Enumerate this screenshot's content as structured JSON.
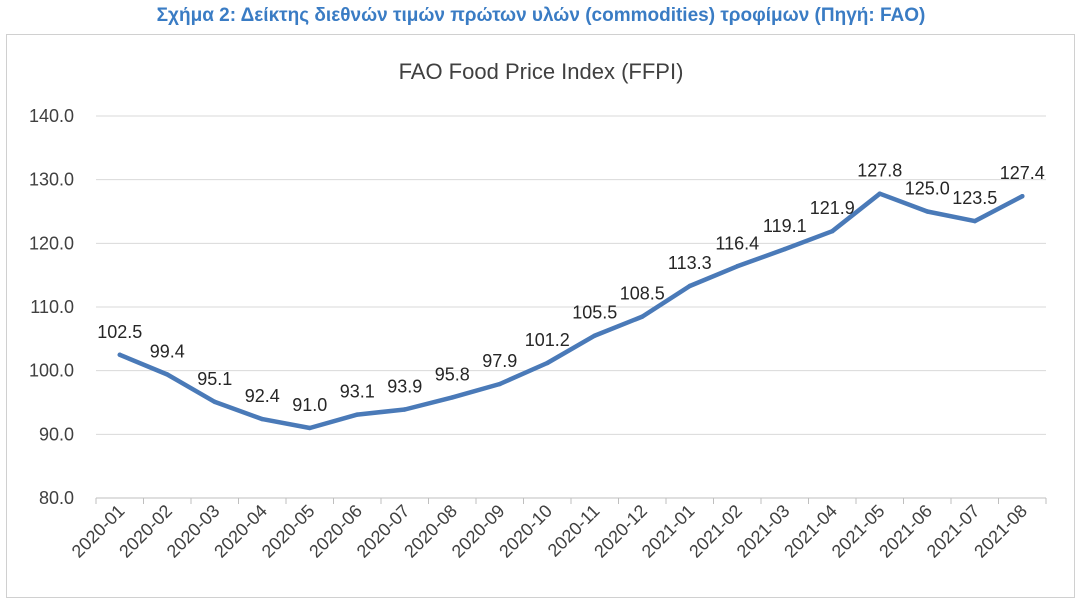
{
  "caption": "Σχήμα 2: Δείκτης διεθνών τιμών πρώτων υλών (commodities) τροφίμων (Πηγή: FAO)",
  "colors": {
    "caption": "#3a7cc4",
    "series": "#4a7ab8",
    "grid": "#d9d9d9",
    "axis": "#bfbfbf"
  },
  "chart_data": {
    "type": "line",
    "title": "FAO Food Price Index (FFPI)",
    "xlabel": "",
    "ylabel": "",
    "ylim": [
      80,
      140
    ],
    "yticks": [
      "80.0",
      "90.0",
      "100.0",
      "110.0",
      "120.0",
      "130.0",
      "140.0"
    ],
    "grid": true,
    "legend": "none",
    "categories": [
      "2020-01",
      "2020-02",
      "2020-03",
      "2020-04",
      "2020-05",
      "2020-06",
      "2020-07",
      "2020-08",
      "2020-09",
      "2020-10",
      "2020-11",
      "2020-12",
      "2021-01",
      "2021-02",
      "2021-03",
      "2021-04",
      "2021-05",
      "2021-06",
      "2021-07",
      "2021-08"
    ],
    "values": [
      102.5,
      99.4,
      95.1,
      92.4,
      91.0,
      93.1,
      93.9,
      95.8,
      97.9,
      101.2,
      105.5,
      108.5,
      113.3,
      116.4,
      119.1,
      121.9,
      127.8,
      125.0,
      123.5,
      127.4
    ],
    "data_labels": [
      "102.5",
      "99.4",
      "95.1",
      "92.4",
      "91.0",
      "93.1",
      "93.9",
      "95.8",
      "97.9",
      "101.2",
      "105.5",
      "108.5",
      "113.3",
      "116.4",
      "119.1",
      "121.9",
      "127.8",
      "125.0",
      "123.5",
      "127.4"
    ]
  }
}
